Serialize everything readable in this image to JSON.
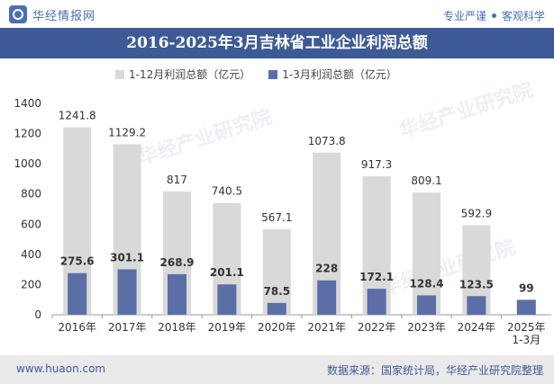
{
  "header": {
    "brand": "华经情报网",
    "tagline_left": "专业严谨",
    "tagline_right": "客观科学"
  },
  "footer": {
    "site": "www.huaon.com",
    "source": "数据来源：国家统计局，华经产业研究院整理"
  },
  "watermark": "华经产业研究院",
  "colors": {
    "series1": "#d9d9d9",
    "series2": "#5b6fa6",
    "title_bg": "#3e5a96"
  },
  "chart_data": {
    "type": "bar",
    "title": "2016-2025年3月吉林省工业企业利润总额",
    "categories": [
      "2016年",
      "2017年",
      "2018年",
      "2019年",
      "2020年",
      "2021年",
      "2022年",
      "2023年",
      "2024年",
      "2025年\n1-3月"
    ],
    "series": [
      {
        "name": "1-12月利润总额（亿元）",
        "values": [
          1241.8,
          1129.2,
          817,
          740.5,
          567.1,
          1073.8,
          917.3,
          809.1,
          592.9,
          null
        ]
      },
      {
        "name": "1-3月利润总额（亿元）",
        "values": [
          275.6,
          301.1,
          268.9,
          201.1,
          78.5,
          228,
          172.1,
          128.4,
          123.5,
          99
        ]
      }
    ],
    "yticks": [
      0,
      200,
      400,
      600,
      800,
      1000,
      1200,
      1400
    ],
    "ylim": [
      0,
      1400
    ],
    "legend_position": "top",
    "grid": false
  }
}
